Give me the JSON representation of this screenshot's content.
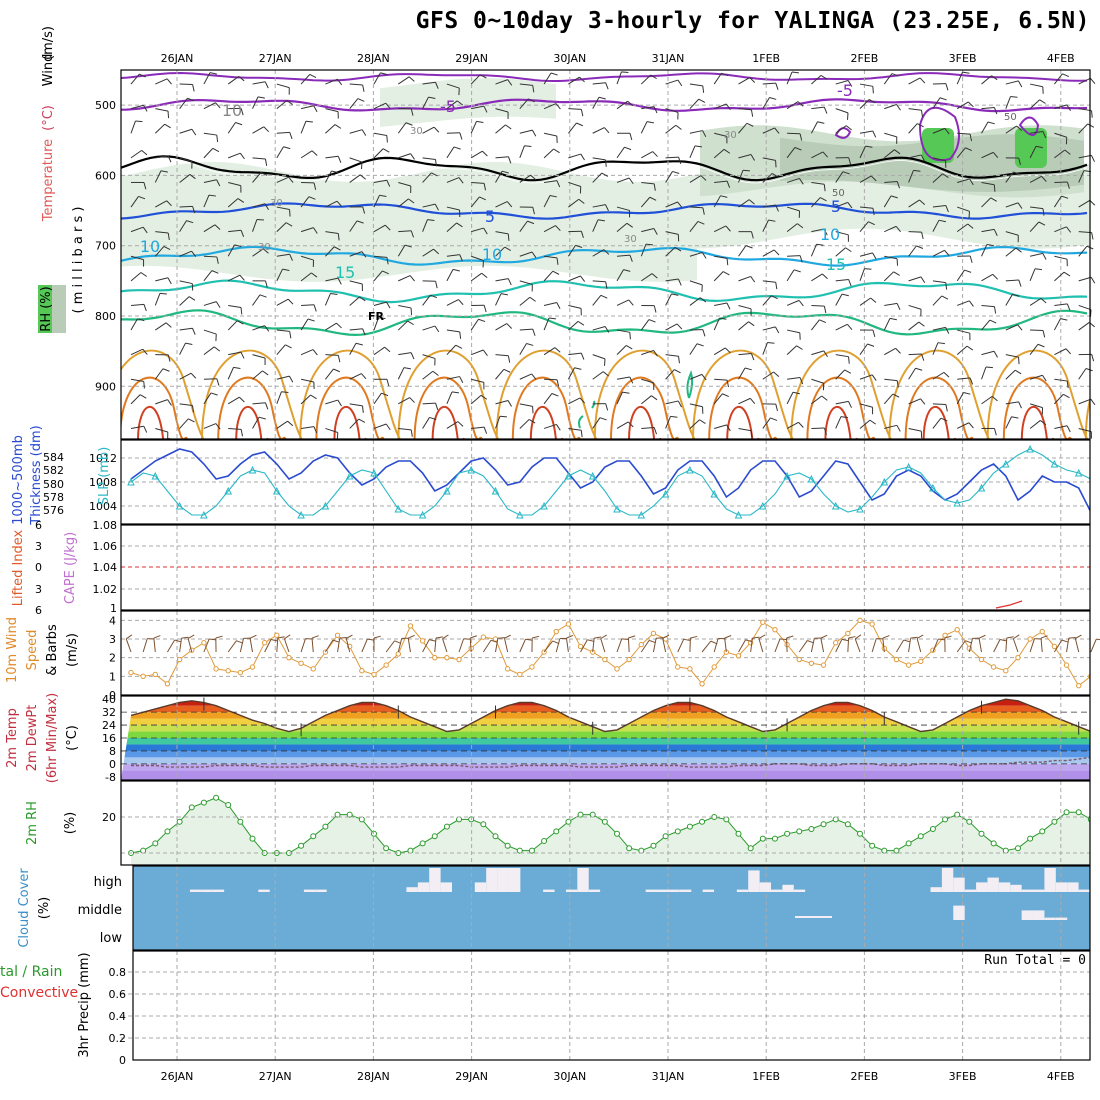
{
  "title": "GFS 0~10day 3-hourly for YALINGA (23.25E, 6.5N)",
  "colors": {
    "grid": "#aaaaaa",
    "slp": "#2a4bd0",
    "thickness": "#2ab8c8",
    "wind": "#e09a3a",
    "rh": "#2a9a2a",
    "rh_fill": "#e6f2e6",
    "cloud_bg": "#6aacd6",
    "cloud": "#f2eef4",
    "temp_line": "#5a3a2a",
    "lifted": "#e03030"
  },
  "chart_data": [
    {
      "type": "contour",
      "panel": "vertical-profile",
      "x_dates": [
        "26JAN",
        "27JAN",
        "28JAN",
        "29JAN",
        "30JAN",
        "31JAN",
        "1FEB",
        "2FEB",
        "3FEB",
        "4FEB"
      ],
      "ylabel_left": "Temperature (°C) Wind (m/s)",
      "ylabel_right": "(millibars)",
      "rh_label": "RH (%)",
      "yticks": [
        "500",
        "600",
        "700",
        "800",
        "900"
      ],
      "ylim": [
        450,
        975
      ],
      "contour_labels": [
        {
          "text": "-5",
          "value": -5
        },
        {
          "text": "FR",
          "value": 0
        },
        {
          "text": "5",
          "value": 5
        },
        {
          "text": "10",
          "value": 10
        },
        {
          "text": "15",
          "value": 15
        },
        {
          "text": "10",
          "value": 10,
          "kind": "rh"
        },
        {
          "text": "30",
          "value": 30,
          "kind": "rh"
        },
        {
          "text": "50",
          "value": 50,
          "kind": "rh"
        }
      ],
      "levels_mb": {
        "minus5": 500,
        "freezing": 590,
        "plus5": 650,
        "plus10": 715,
        "plus15": 765,
        "plus20": 810
      }
    },
    {
      "type": "line",
      "panel": "thickness-slp",
      "ylabel_left": "1000~500mb Thickness (dm)",
      "ylabel_right": "SLP (mb)",
      "yticks_left": [
        "576",
        "578",
        "580",
        "582",
        "584"
      ],
      "yticks_right": [
        "1004",
        "1008",
        "1012"
      ],
      "ylim_slp": [
        1001,
        1015
      ],
      "series": [
        {
          "name": "SLP",
          "axis": "right",
          "values": [
            1008.5,
            1010,
            1011.5,
            1012.5,
            1013.5,
            1013,
            1011,
            1008.5,
            1009,
            1011,
            1012.5,
            1013,
            1011,
            1008.5,
            1009.5,
            1011.5,
            1012.5,
            1012,
            1009.5,
            1007.5,
            1008.5,
            1010.5,
            1011.5,
            1011.5,
            1009.5,
            1006.5,
            1007.5,
            1009.5,
            1011.5,
            1012,
            1010,
            1007.5,
            1008,
            1010.5,
            1012,
            1012,
            1009.5,
            1007,
            1008,
            1010.5,
            1011.5,
            1011.5,
            1009,
            1006,
            1007,
            1010,
            1011.5,
            1011.5,
            1009,
            1005.5,
            1007,
            1010,
            1011.5,
            1011.5,
            1009,
            1005.5,
            1006.5,
            1009,
            1011.5,
            1011,
            1008,
            1005,
            1006,
            1009,
            1010,
            1009,
            1006.5,
            1005,
            1006,
            1008,
            1010,
            1011,
            1009,
            1005,
            1006.5,
            1009,
            1008,
            1008,
            1007,
            1003
          ]
        },
        {
          "name": "1000~500mb Thickness",
          "axis": "right",
          "values": [
            1008,
            1009.5,
            1009,
            1006.5,
            1004,
            1002.5,
            1002.5,
            1004,
            1006.5,
            1009,
            1010,
            1009.5,
            1006.5,
            1004,
            1002.5,
            1002.5,
            1004,
            1006.5,
            1009,
            1010,
            1009.5,
            1006.5,
            1003.5,
            1002.5,
            1002.5,
            1004,
            1006.5,
            1009.5,
            1010,
            1009,
            1006.5,
            1003.5,
            1002.5,
            1002.5,
            1004,
            1006.5,
            1009,
            1010,
            1009,
            1006.5,
            1003.5,
            1002.5,
            1002.5,
            1004,
            1006,
            1009,
            1010,
            1009,
            1006,
            1003.5,
            1002.5,
            1002.5,
            1004,
            1006,
            1009,
            1009.5,
            1008.5,
            1006,
            1004,
            1003,
            1003.5,
            1005.5,
            1008,
            1010,
            1010.5,
            1009.5,
            1007,
            1005,
            1004.5,
            1005,
            1007,
            1009.5,
            1011,
            1012.5,
            1013.5,
            1012.5,
            1011,
            1010,
            1009.5,
            1008.5
          ]
        }
      ]
    },
    {
      "type": "line",
      "panel": "stability",
      "ylabel_left": "Lifted Index",
      "ylabel_right": "CAPE (J/kg)",
      "yticks_left": [
        "6",
        "3",
        "0",
        "3",
        "6"
      ],
      "yticks_right": [
        "1",
        "1.02",
        "1.04",
        "1.06",
        "1.08"
      ]
    },
    {
      "type": "line",
      "panel": "wind10m",
      "ylabel": "10m Wind Speed & Barbs (m/s)",
      "yticks": [
        "0",
        "1",
        "2",
        "3",
        "4"
      ],
      "ylim": [
        0,
        4.5
      ],
      "series": [
        {
          "name": "10m Wind Speed",
          "values": [
            1.2,
            1.0,
            1.1,
            0.6,
            1.9,
            2.4,
            2.8,
            1.4,
            1.3,
            1.2,
            1.5,
            2.8,
            3.2,
            2.0,
            1.7,
            1.4,
            2.3,
            3.2,
            2.6,
            1.3,
            1.1,
            1.6,
            2.2,
            3.7,
            2.9,
            2.0,
            2.0,
            1.9,
            2.5,
            3.1,
            3.0,
            1.4,
            1.1,
            1.5,
            2.3,
            3.4,
            3.8,
            2.6,
            2.3,
            1.9,
            1.4,
            1.9,
            2.7,
            3.3,
            3.0,
            1.5,
            1.4,
            0.6,
            1.5,
            2.3,
            2.1,
            2.8,
            3.9,
            3.5,
            2.7,
            1.9,
            1.7,
            1.6,
            2.8,
            3.3,
            4.0,
            3.8,
            2.5,
            1.9,
            1.6,
            1.8,
            2.4,
            3.2,
            3.5,
            2.5,
            1.9,
            1.5,
            1.3,
            2.0,
            3.0,
            3.4,
            2.6,
            1.6,
            0.5,
            1.0
          ]
        }
      ]
    },
    {
      "type": "area",
      "panel": "temperature",
      "ylabel": "2m Temp 2m DewPt (6hr Min/Max) (°C)",
      "yticks": [
        "-8",
        "0",
        "8",
        "16",
        "24",
        "32",
        "40"
      ],
      "ylim": [
        -10,
        42
      ],
      "series": [
        {
          "name": "2m Temp",
          "values": [
            30,
            32,
            34,
            36,
            38,
            39,
            38,
            36,
            33,
            30,
            27,
            25,
            22,
            20,
            22,
            26,
            30,
            33,
            36,
            38,
            38,
            36,
            33,
            29,
            26,
            23,
            20,
            21,
            25,
            29,
            33,
            36,
            38,
            38,
            36,
            33,
            29,
            26,
            23,
            20,
            21,
            25,
            29,
            33,
            36,
            38,
            38,
            36,
            33,
            29,
            26,
            23,
            20,
            21,
            25,
            29,
            33,
            36,
            38,
            38,
            36,
            33,
            29,
            26,
            23,
            20,
            21,
            25,
            29,
            33,
            36,
            38,
            40,
            39,
            36,
            33,
            29,
            26,
            23,
            20
          ]
        },
        {
          "name": "2m DewPt",
          "values": [
            -1,
            -1,
            -1,
            -2,
            -2,
            -2,
            -2,
            -1,
            -1,
            -1,
            -1,
            -2,
            -2,
            -2,
            -2,
            -1,
            -1,
            -1,
            -1,
            -2,
            -2,
            -2,
            -2,
            -1,
            -1,
            -1,
            -1,
            -1,
            -2,
            -2,
            -2,
            -2,
            -1,
            -1,
            -1,
            -1,
            -1,
            -2,
            -2,
            -2,
            -2,
            -1,
            -1,
            -1,
            -1,
            -1,
            -2,
            -2,
            -2,
            -2,
            -1,
            -1,
            -1,
            0,
            0,
            0,
            -1,
            -1,
            -1,
            0,
            0,
            0,
            -1,
            -1,
            -1,
            0,
            0,
            0,
            -1,
            -1,
            0,
            0,
            0,
            1,
            1,
            1,
            2,
            2,
            3,
            4
          ]
        }
      ]
    },
    {
      "type": "area",
      "panel": "relative-humidity",
      "ylabel": "2m RH (%)",
      "yticks": [
        "20"
      ],
      "ylim": [
        0,
        35
      ],
      "series": [
        {
          "name": "2m RH",
          "values": [
            5,
            6,
            9,
            14,
            18,
            24,
            26,
            28,
            25,
            18,
            11,
            5,
            5,
            5,
            8,
            12,
            16,
            21,
            21,
            19,
            13,
            7,
            5,
            6,
            9,
            12,
            16,
            19,
            19,
            17,
            12,
            8,
            6,
            6,
            10,
            14,
            18,
            21,
            21,
            18,
            13,
            7,
            6,
            8,
            12,
            14,
            16,
            18,
            20,
            19,
            13,
            7,
            11,
            11,
            13,
            14,
            15,
            17,
            19,
            17,
            13,
            8,
            6,
            6,
            9,
            12,
            15,
            19,
            21,
            18,
            13,
            9,
            6,
            7,
            11,
            14,
            18,
            22,
            22,
            19
          ]
        }
      ]
    },
    {
      "type": "bar",
      "panel": "cloud-cover",
      "ylabel": "Cloud Cover (%)",
      "ytick_labels": [
        "high",
        "middle",
        "low"
      ],
      "high": [
        0,
        0,
        0,
        0,
        0,
        10,
        10,
        10,
        0,
        0,
        0,
        10,
        0,
        0,
        0,
        10,
        10,
        0,
        0,
        0,
        0,
        0,
        0,
        0,
        20,
        40,
        100,
        40,
        0,
        0,
        40,
        100,
        100,
        100,
        0,
        0,
        10,
        0,
        10,
        100,
        10,
        0,
        0,
        0,
        0,
        10,
        10,
        10,
        10,
        0,
        10,
        0,
        0,
        10,
        90,
        40,
        10,
        30,
        10,
        0,
        0,
        0,
        0,
        0,
        0,
        0,
        0,
        0,
        0,
        0,
        20,
        100,
        60,
        10,
        40,
        60,
        40,
        30,
        10,
        10,
        100,
        40,
        40,
        10
      ],
      "middle": [
        0,
        0,
        0,
        0,
        0,
        0,
        0,
        0,
        0,
        0,
        0,
        0,
        0,
        0,
        0,
        0,
        0,
        0,
        0,
        0,
        0,
        0,
        0,
        0,
        0,
        0,
        0,
        0,
        0,
        0,
        0,
        0,
        0,
        0,
        0,
        0,
        0,
        0,
        0,
        0,
        0,
        0,
        0,
        0,
        0,
        0,
        0,
        0,
        0,
        0,
        0,
        0,
        0,
        0,
        0,
        0,
        0,
        0,
        0,
        0,
        0,
        0,
        0,
        0,
        0,
        0,
        0,
        0,
        0,
        0,
        0,
        0,
        60,
        0,
        0,
        0,
        0,
        0,
        40,
        40,
        10,
        10,
        0,
        0
      ]
    },
    {
      "type": "bar",
      "panel": "precipitation",
      "ylabel": "3hr Precip (mm)",
      "ylabel_top": "tal / Rain",
      "ylabel_conv": "Convective",
      "yticks": [
        "0",
        "0.2",
        "0.4",
        "0.6",
        "0.8"
      ],
      "ylim": [
        0,
        1
      ],
      "run_total": "Run Total = 0",
      "values": []
    }
  ]
}
